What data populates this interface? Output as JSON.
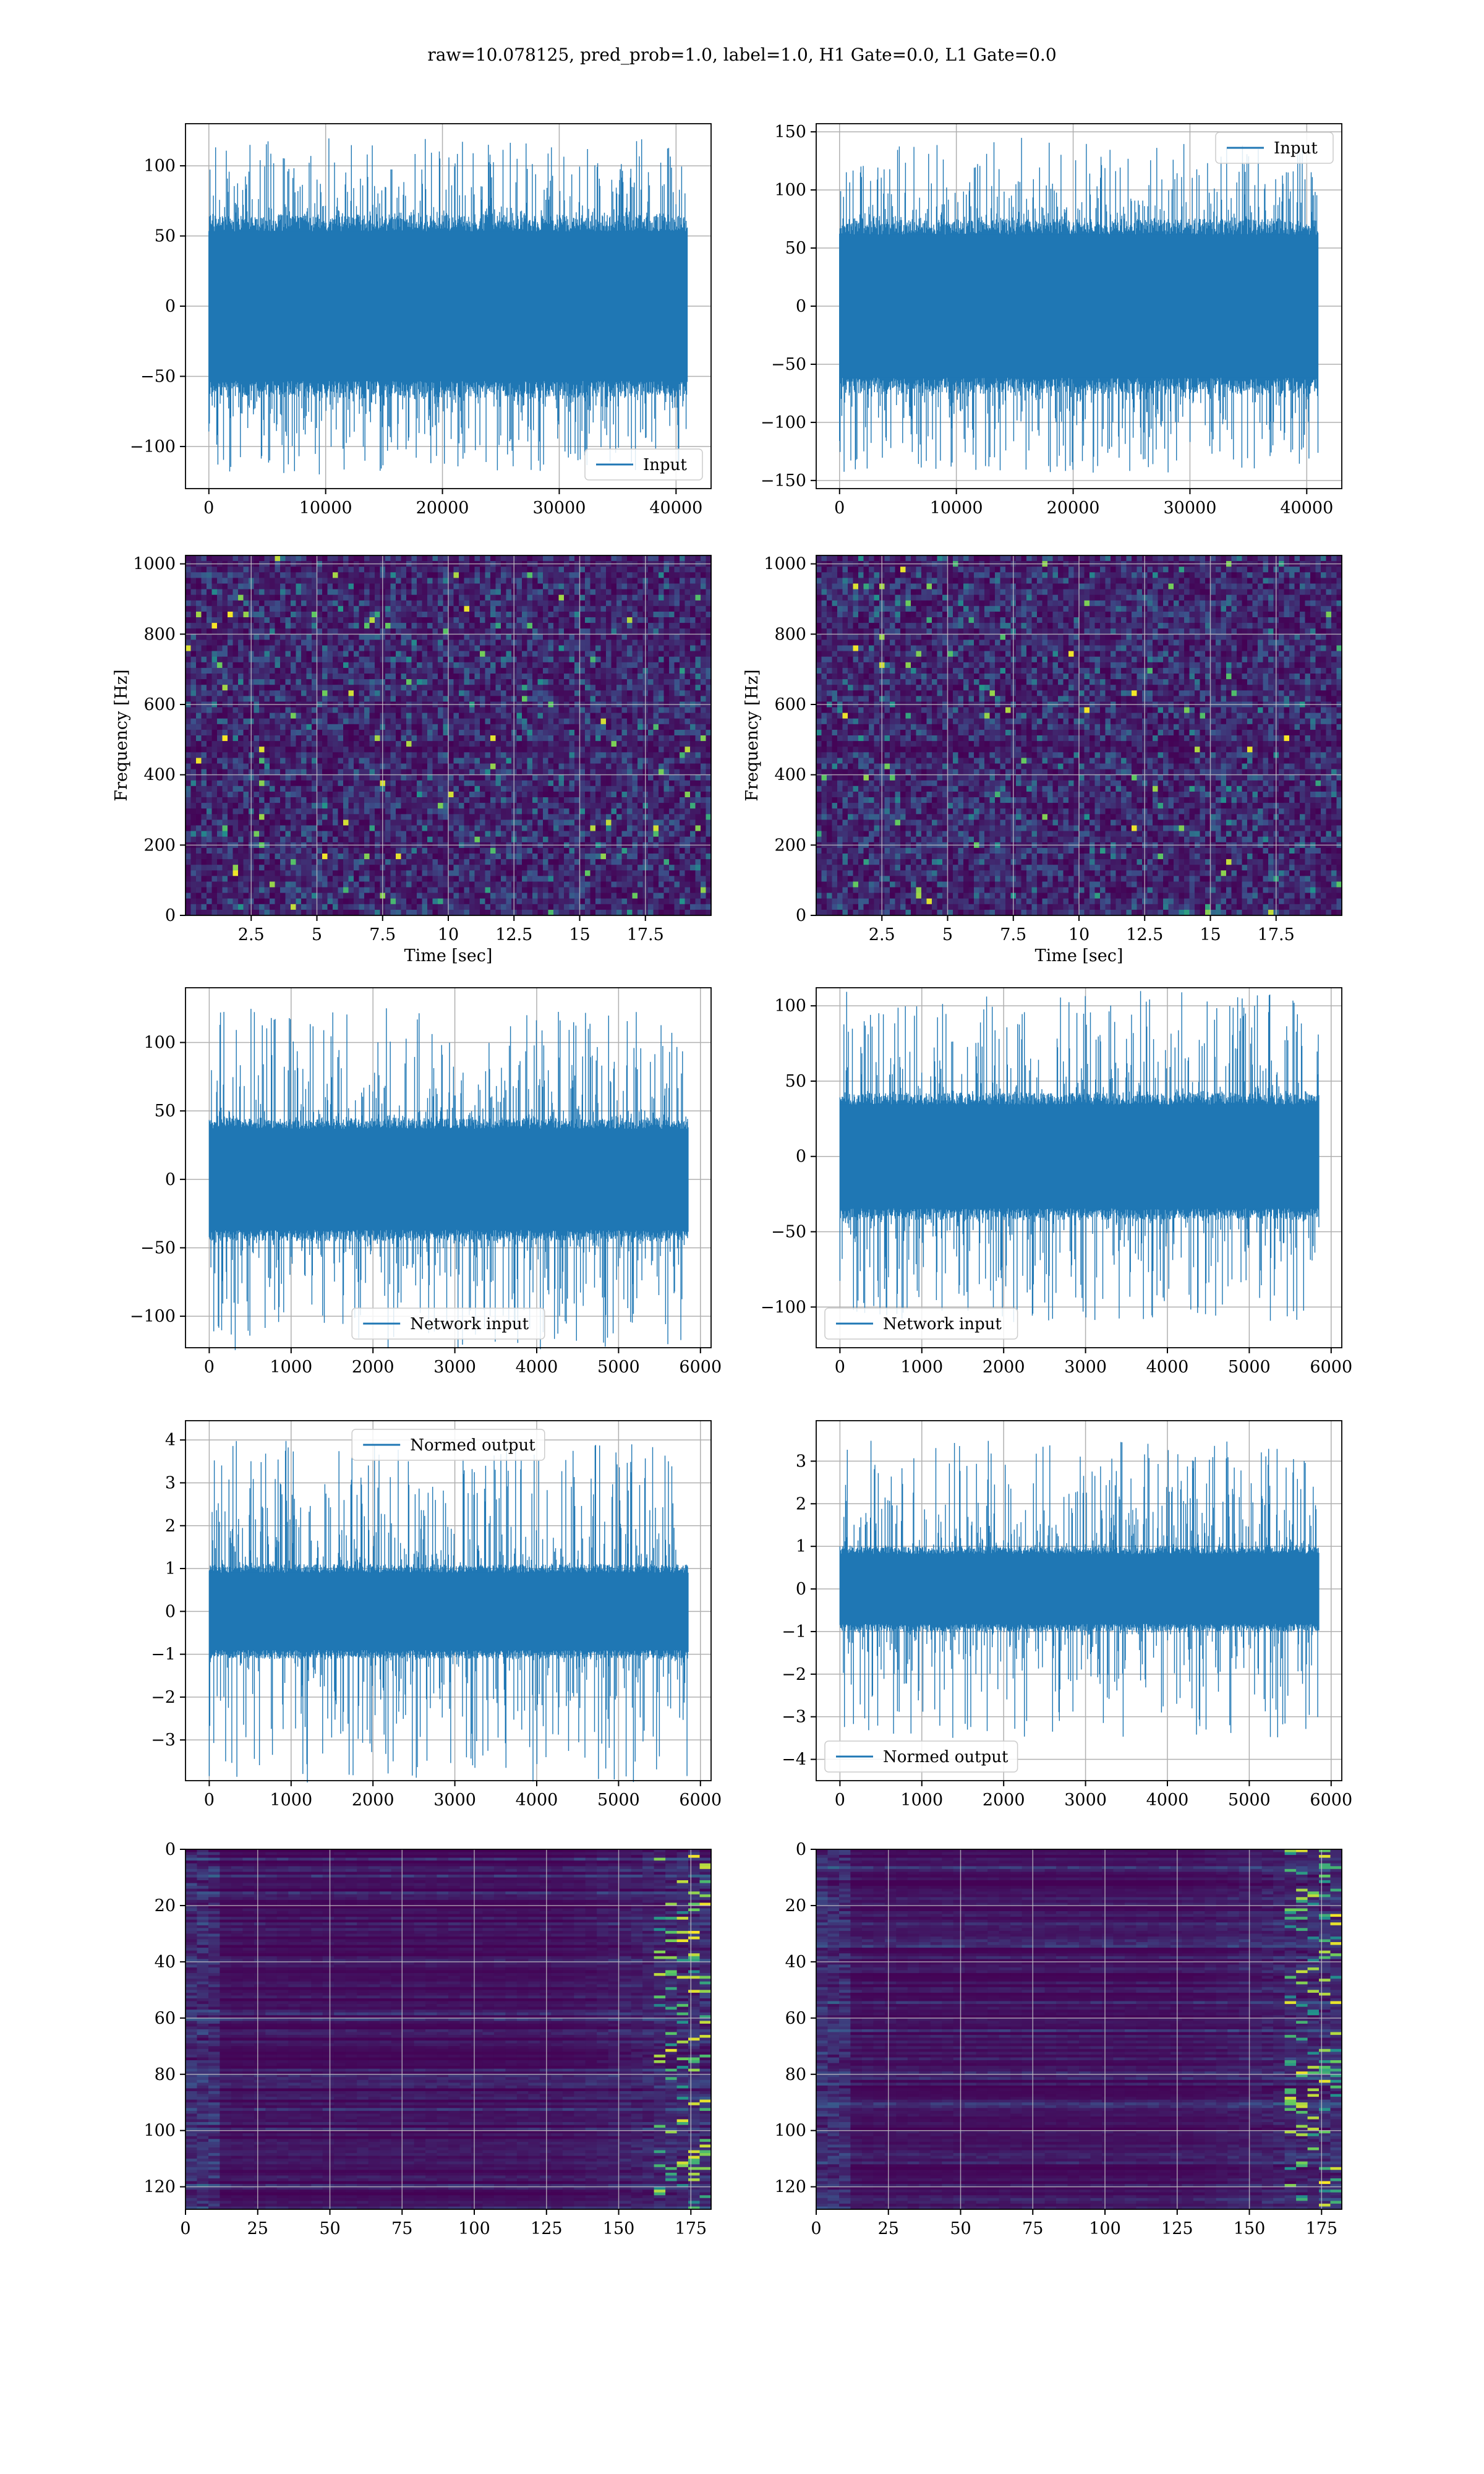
{
  "title": "raw=10.078125, pred_prob=1.0, label=1.0, H1 Gate=0.0, L1 Gate=0.0",
  "colors": {
    "line": "#1f77b4",
    "grid": "#b0b0b0",
    "viridis_low": "#440154",
    "viridis_high": "#fde725"
  },
  "chart_data": [
    {
      "id": "h1-input",
      "type": "line",
      "series": [
        {
          "name": "Input",
          "style": "dense-noise",
          "amplitude_typical": 65,
          "amplitude_peak": 120
        }
      ],
      "x_range": [
        0,
        40960
      ],
      "xlim": [
        -2000,
        43000
      ],
      "ylim": [
        -130,
        130
      ],
      "xticks": [
        0,
        10000,
        20000,
        30000,
        40000
      ],
      "yticks": [
        -100,
        -50,
        0,
        50,
        100
      ],
      "legend": "lower right",
      "grid": true,
      "xlabel": "",
      "ylabel": ""
    },
    {
      "id": "l1-input",
      "type": "line",
      "series": [
        {
          "name": "Input",
          "style": "dense-noise",
          "amplitude_typical": 75,
          "amplitude_peak": 145
        }
      ],
      "x_range": [
        0,
        40960
      ],
      "xlim": [
        -2000,
        43000
      ],
      "ylim": [
        -157,
        157
      ],
      "xticks": [
        0,
        10000,
        20000,
        30000,
        40000
      ],
      "yticks": [
        -150,
        -100,
        -50,
        0,
        50,
        100,
        150
      ],
      "legend": "upper right",
      "grid": true,
      "xlabel": "",
      "ylabel": ""
    },
    {
      "id": "h1-spectrogram",
      "type": "heatmap",
      "colormap": "viridis",
      "xlim": [
        0,
        20
      ],
      "ylim": [
        0,
        1024
      ],
      "xticks": [
        2.5,
        5.0,
        7.5,
        10.0,
        12.5,
        15.0,
        17.5
      ],
      "yticks": [
        0,
        200,
        400,
        600,
        800,
        1000
      ],
      "xlabel": "Time [sec]",
      "ylabel": "Frequency [Hz]",
      "grid": true
    },
    {
      "id": "l1-spectrogram",
      "type": "heatmap",
      "colormap": "viridis",
      "xlim": [
        0,
        20
      ],
      "ylim": [
        0,
        1024
      ],
      "xticks": [
        2.5,
        5.0,
        7.5,
        10.0,
        12.5,
        15.0,
        17.5
      ],
      "yticks": [
        0,
        200,
        400,
        600,
        800,
        1000
      ],
      "xlabel": "Time [sec]",
      "ylabel": "Frequency [Hz]",
      "grid": true
    },
    {
      "id": "h1-network-input",
      "type": "line",
      "series": [
        {
          "name": "Network input",
          "style": "dense-noise",
          "amplitude_typical": 45,
          "amplitude_peak": 125
        }
      ],
      "x_range": [
        0,
        5850
      ],
      "xlim": [
        -290,
        6130
      ],
      "ylim": [
        -123,
        140
      ],
      "xticks": [
        0,
        1000,
        2000,
        3000,
        4000,
        5000,
        6000
      ],
      "yticks": [
        -100,
        -50,
        0,
        50,
        100
      ],
      "legend": "lower center",
      "grid": true,
      "xlabel": "",
      "ylabel": ""
    },
    {
      "id": "l1-network-input",
      "type": "line",
      "series": [
        {
          "name": "Network input",
          "style": "dense-noise",
          "amplitude_typical": 42,
          "amplitude_peak": 110
        }
      ],
      "x_range": [
        0,
        5850
      ],
      "xlim": [
        -290,
        6130
      ],
      "ylim": [
        -127,
        112
      ],
      "xticks": [
        0,
        1000,
        2000,
        3000,
        4000,
        5000,
        6000
      ],
      "yticks": [
        -100,
        -50,
        0,
        50,
        100
      ],
      "legend": "lower left",
      "grid": true,
      "xlabel": "",
      "ylabel": ""
    },
    {
      "id": "h1-normed-output",
      "type": "line",
      "series": [
        {
          "name": "Normed output",
          "style": "dense-noise",
          "amplitude_typical": 1.1,
          "amplitude_peak": 4.0
        }
      ],
      "x_range": [
        0,
        5850
      ],
      "xlim": [
        -290,
        6130
      ],
      "ylim": [
        -3.95,
        4.45
      ],
      "xticks": [
        0,
        1000,
        2000,
        3000,
        4000,
        5000,
        6000
      ],
      "yticks": [
        -3,
        -2,
        -1,
        0,
        1,
        2,
        3,
        4
      ],
      "legend": "upper center",
      "grid": true,
      "xlabel": "",
      "ylabel": ""
    },
    {
      "id": "l1-normed-output",
      "type": "line",
      "series": [
        {
          "name": "Normed output",
          "style": "dense-noise",
          "amplitude_typical": 1.0,
          "amplitude_peak": 3.5
        }
      ],
      "x_range": [
        0,
        5850
      ],
      "xlim": [
        -290,
        6130
      ],
      "ylim": [
        -4.5,
        3.95
      ],
      "xticks": [
        0,
        1000,
        2000,
        3000,
        4000,
        5000,
        6000
      ],
      "yticks": [
        -4,
        -3,
        -2,
        -1,
        0,
        1,
        2,
        3
      ],
      "legend": "lower left",
      "grid": true,
      "xlabel": "",
      "ylabel": ""
    },
    {
      "id": "h1-feature-map",
      "type": "heatmap",
      "colormap": "viridis",
      "rows": 128,
      "cols": 182,
      "xlim": [
        0,
        182
      ],
      "ylim": [
        128,
        0
      ],
      "xticks": [
        0,
        25,
        50,
        75,
        100,
        125,
        150,
        175
      ],
      "yticks": [
        0,
        20,
        40,
        60,
        80,
        100,
        120
      ],
      "grid": true,
      "xlabel": "",
      "ylabel": ""
    },
    {
      "id": "l1-feature-map",
      "type": "heatmap",
      "colormap": "viridis",
      "rows": 128,
      "cols": 182,
      "xlim": [
        0,
        182
      ],
      "ylim": [
        128,
        0
      ],
      "xticks": [
        0,
        25,
        50,
        75,
        100,
        125,
        150,
        175
      ],
      "yticks": [
        0,
        20,
        40,
        60,
        80,
        100,
        120
      ],
      "grid": true,
      "xlabel": "",
      "ylabel": ""
    }
  ]
}
